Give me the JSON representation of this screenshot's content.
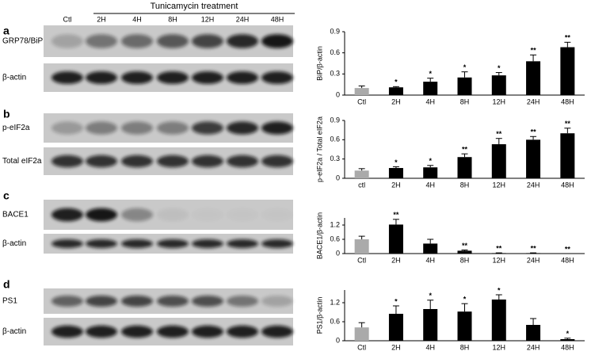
{
  "header": {
    "treatment": "Tunicamycin treatment",
    "lanes": [
      "Ctl",
      "2H",
      "4H",
      "8H",
      "12H",
      "24H",
      "48H"
    ]
  },
  "blots": [
    {
      "letter": "a",
      "rows": [
        "GRP78/BiP",
        "β-actin"
      ]
    },
    {
      "letter": "b",
      "rows": [
        "p-eIF2a",
        "Total eIF2a"
      ]
    },
    {
      "letter": "c",
      "rows": [
        "BACE1",
        "β-actin"
      ]
    },
    {
      "letter": "d",
      "rows": [
        "PS1",
        "β-actin"
      ]
    }
  ],
  "chart_data": [
    {
      "type": "bar",
      "ylabel": "BiP/β-actin",
      "categories": [
        "Ctl",
        "2H",
        "4H",
        "8H",
        "12H",
        "24H",
        "48H"
      ],
      "values": [
        0.1,
        0.11,
        0.19,
        0.25,
        0.28,
        0.48,
        0.68
      ],
      "errors": [
        0.03,
        0.01,
        0.05,
        0.08,
        0.04,
        0.09,
        0.07
      ],
      "annotations": [
        null,
        "*",
        "*",
        "*",
        "*",
        "**",
        "**"
      ],
      "colors": [
        "#aaaaaa",
        "#000000",
        "#000000",
        "#000000",
        "#000000",
        "#000000",
        "#000000"
      ],
      "ylim": [
        0,
        0.9
      ],
      "yticks": [
        0,
        0.3,
        0.6,
        0.9
      ]
    },
    {
      "type": "bar",
      "ylabel": "p-eIF2a / Total eIF2a",
      "categories": [
        "ctl",
        "2H",
        "4H",
        "8H",
        "12H",
        "24H",
        "48H"
      ],
      "values": [
        0.12,
        0.16,
        0.17,
        0.33,
        0.53,
        0.6,
        0.7
      ],
      "errors": [
        0.03,
        0.02,
        0.03,
        0.05,
        0.09,
        0.05,
        0.08
      ],
      "annotations": [
        null,
        "*",
        "*",
        "**",
        "**",
        "**",
        "**"
      ],
      "colors": [
        "#aaaaaa",
        "#000000",
        "#000000",
        "#000000",
        "#000000",
        "#000000",
        "#000000"
      ],
      "ylim": [
        0,
        0.9
      ],
      "yticks": [
        0,
        0.3,
        0.6,
        0.9
      ]
    },
    {
      "type": "bar",
      "ylabel": "BACE1/β-actin",
      "categories": [
        "Ctl",
        "2H",
        "4H",
        "8H",
        "12H",
        "24H",
        "48H"
      ],
      "values": [
        0.6,
        1.22,
        0.42,
        0.12,
        0.02,
        0.02,
        0
      ],
      "errors": [
        0.13,
        0.22,
        0.18,
        0.03,
        0.01,
        0.01,
        0
      ],
      "annotations": [
        null,
        "**",
        null,
        "**",
        "**",
        "**",
        "**"
      ],
      "colors": [
        "#aaaaaa",
        "#000000",
        "#000000",
        "#000000",
        "#000000",
        "#000000",
        "#000000"
      ],
      "ylim": [
        0,
        1.5
      ],
      "yticks": [
        0,
        0.6,
        1.2
      ]
    },
    {
      "type": "bar",
      "ylabel": "PS1/β-actin",
      "categories": [
        "Ctl",
        "2H",
        "4H",
        "8H",
        "12H",
        "24H",
        "48H"
      ],
      "values": [
        0.42,
        0.85,
        1.0,
        0.92,
        1.3,
        0.5,
        0.05
      ],
      "errors": [
        0.15,
        0.25,
        0.28,
        0.25,
        0.15,
        0.2,
        0.03
      ],
      "annotations": [
        null,
        "*",
        "*",
        "*",
        "*",
        null,
        "*"
      ],
      "colors": [
        "#aaaaaa",
        "#000000",
        "#000000",
        "#000000",
        "#000000",
        "#000000",
        "#000000"
      ],
      "ylim": [
        0,
        1.6
      ],
      "yticks": [
        0,
        0.6,
        1.2
      ]
    }
  ]
}
